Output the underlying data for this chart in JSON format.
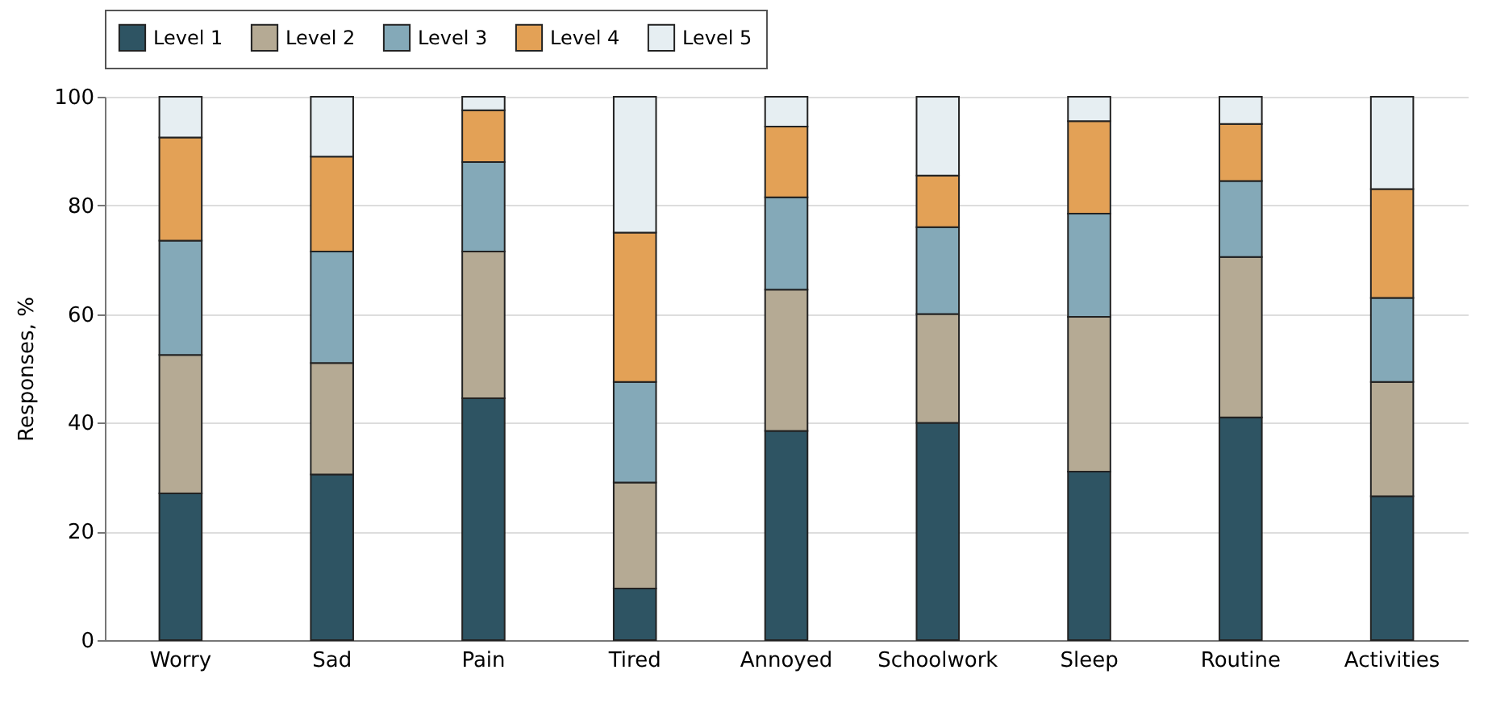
{
  "chart_data": {
    "type": "bar",
    "stacked": true,
    "ylabel": "Responses, %",
    "categories": [
      "Worry",
      "Sad",
      "Pain",
      "Tired",
      "Annoyed",
      "Schoolwork",
      "Sleep",
      "Routine",
      "Activities"
    ],
    "series": [
      {
        "name": "Level 1",
        "color": "#2e5463",
        "values": [
          27,
          30.5,
          44.5,
          9.5,
          38.5,
          40,
          31,
          41,
          26.5
        ]
      },
      {
        "name": "Level 2",
        "color": "#b5aa94",
        "values": [
          25.5,
          20.5,
          27,
          19.5,
          26,
          20,
          28.5,
          29.5,
          21
        ]
      },
      {
        "name": "Level 3",
        "color": "#84a9b8",
        "values": [
          21,
          20.5,
          16.5,
          18.5,
          17,
          16,
          19,
          14,
          15.5
        ]
      },
      {
        "name": "Level 4",
        "color": "#e3a156",
        "values": [
          19,
          17.5,
          9.5,
          27.5,
          13,
          9.5,
          17,
          10.5,
          20
        ]
      },
      {
        "name": "Level 5",
        "color": "#e6eef2",
        "values": [
          7.5,
          11,
          2.5,
          25,
          5.5,
          14.5,
          4.5,
          5,
          17
        ]
      }
    ],
    "ylim": [
      0,
      100
    ],
    "yticks": [
      0,
      20,
      40,
      60,
      80,
      100
    ],
    "grid": "y",
    "legend": "top"
  }
}
